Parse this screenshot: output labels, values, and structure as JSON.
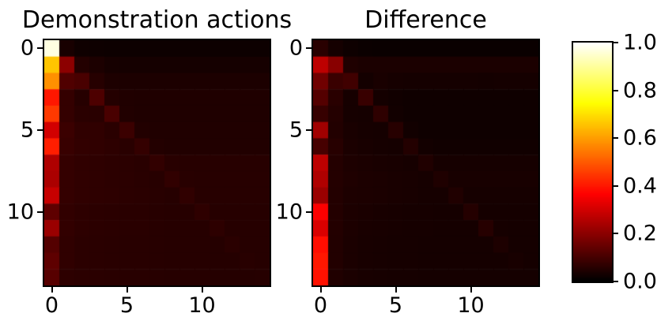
{
  "figure": {
    "background": "#ffffff",
    "axis_color": "#000000",
    "colormap": "hot",
    "vmin": 0.0,
    "vmax": 1.0
  },
  "chart_data": [
    {
      "type": "heatmap",
      "title": "Demonstration actions",
      "xlabel": "",
      "ylabel": "",
      "n_rows": 15,
      "n_cols": 15,
      "colormap": "hot",
      "vmin": 0.0,
      "vmax": 1.0,
      "x_ticks": [
        0,
        5,
        10
      ],
      "x_tick_labels": [
        "0",
        "5",
        "10"
      ],
      "y_ticks": [
        0,
        5,
        10
      ],
      "y_tick_labels": [
        "0",
        "5",
        "10"
      ],
      "values": [
        [
          0.97,
          0.035,
          0.022,
          0.02,
          0.018,
          0.018,
          0.018,
          0.018,
          0.018,
          0.018,
          0.018,
          0.018,
          0.018,
          0.018,
          0.018
        ],
        [
          0.66,
          0.2,
          0.05,
          0.04,
          0.032,
          0.03,
          0.03,
          0.03,
          0.03,
          0.03,
          0.03,
          0.03,
          0.03,
          0.032,
          0.032
        ],
        [
          0.58,
          0.115,
          0.105,
          0.055,
          0.042,
          0.04,
          0.04,
          0.04,
          0.04,
          0.04,
          0.04,
          0.04,
          0.04,
          0.04,
          0.04
        ],
        [
          0.4,
          0.075,
          0.055,
          0.11,
          0.052,
          0.046,
          0.044,
          0.044,
          0.044,
          0.044,
          0.044,
          0.044,
          0.044,
          0.044,
          0.044
        ],
        [
          0.45,
          0.075,
          0.06,
          0.058,
          0.105,
          0.047,
          0.045,
          0.045,
          0.045,
          0.045,
          0.045,
          0.045,
          0.045,
          0.045,
          0.045
        ],
        [
          0.3,
          0.084,
          0.068,
          0.068,
          0.06,
          0.085,
          0.048,
          0.046,
          0.046,
          0.046,
          0.046,
          0.046,
          0.046,
          0.046,
          0.046
        ],
        [
          0.41,
          0.08,
          0.072,
          0.068,
          0.064,
          0.058,
          0.075,
          0.05,
          0.047,
          0.047,
          0.047,
          0.047,
          0.047,
          0.047,
          0.047
        ],
        [
          0.25,
          0.075,
          0.068,
          0.066,
          0.063,
          0.061,
          0.058,
          0.072,
          0.057,
          0.056,
          0.056,
          0.056,
          0.056,
          0.056,
          0.056
        ],
        [
          0.245,
          0.075,
          0.068,
          0.066,
          0.063,
          0.061,
          0.059,
          0.056,
          0.07,
          0.057,
          0.056,
          0.056,
          0.056,
          0.056,
          0.056
        ],
        [
          0.285,
          0.075,
          0.068,
          0.066,
          0.064,
          0.062,
          0.06,
          0.057,
          0.054,
          0.068,
          0.056,
          0.056,
          0.056,
          0.056,
          0.056
        ],
        [
          0.135,
          0.07,
          0.064,
          0.062,
          0.06,
          0.059,
          0.058,
          0.056,
          0.055,
          0.054,
          0.066,
          0.054,
          0.054,
          0.054,
          0.054
        ],
        [
          0.22,
          0.072,
          0.064,
          0.062,
          0.06,
          0.059,
          0.058,
          0.056,
          0.055,
          0.054,
          0.054,
          0.065,
          0.055,
          0.054,
          0.054
        ],
        [
          0.12,
          0.068,
          0.062,
          0.06,
          0.058,
          0.057,
          0.057,
          0.056,
          0.055,
          0.054,
          0.054,
          0.053,
          0.06,
          0.054,
          0.054
        ],
        [
          0.135,
          0.068,
          0.062,
          0.06,
          0.058,
          0.057,
          0.057,
          0.056,
          0.055,
          0.054,
          0.054,
          0.053,
          0.053,
          0.057,
          0.054
        ],
        [
          0.125,
          0.065,
          0.062,
          0.06,
          0.058,
          0.057,
          0.057,
          0.056,
          0.055,
          0.054,
          0.054,
          0.053,
          0.053,
          0.053,
          0.054
        ]
      ]
    },
    {
      "type": "heatmap",
      "title": "Difference",
      "xlabel": "",
      "ylabel": "",
      "n_rows": 15,
      "n_cols": 15,
      "colormap": "hot",
      "vmin": 0.0,
      "vmax": 1.0,
      "x_ticks": [
        0,
        5,
        10
      ],
      "x_tick_labels": [
        "0",
        "5",
        "10"
      ],
      "y_ticks": [
        0,
        5,
        10
      ],
      "y_tick_labels": [
        "0",
        "5",
        "10"
      ],
      "values": [
        [
          0.058,
          0.03,
          0.02,
          0.016,
          0.015,
          0.015,
          0.015,
          0.015,
          0.015,
          0.015,
          0.015,
          0.015,
          0.015,
          0.015,
          0.015
        ],
        [
          0.27,
          0.195,
          0.045,
          0.038,
          0.038,
          0.038,
          0.038,
          0.038,
          0.038,
          0.038,
          0.038,
          0.038,
          0.038,
          0.038,
          0.038
        ],
        [
          0.16,
          0.082,
          0.092,
          0.028,
          0.036,
          0.032,
          0.03,
          0.03,
          0.03,
          0.03,
          0.03,
          0.028,
          0.03,
          0.03,
          0.03
        ],
        [
          0.12,
          0.058,
          0.032,
          0.08,
          0.028,
          0.024,
          0.022,
          0.022,
          0.022,
          0.022,
          0.022,
          0.022,
          0.022,
          0.022,
          0.022
        ],
        [
          0.078,
          0.052,
          0.032,
          0.03,
          0.066,
          0.026,
          0.022,
          0.022,
          0.022,
          0.022,
          0.022,
          0.022,
          0.022,
          0.022,
          0.022
        ],
        [
          0.23,
          0.048,
          0.036,
          0.032,
          0.03,
          0.056,
          0.026,
          0.022,
          0.022,
          0.022,
          0.022,
          0.022,
          0.022,
          0.022,
          0.022
        ],
        [
          0.1,
          0.056,
          0.038,
          0.034,
          0.032,
          0.03,
          0.05,
          0.027,
          0.024,
          0.024,
          0.024,
          0.024,
          0.024,
          0.024,
          0.024
        ],
        [
          0.27,
          0.052,
          0.042,
          0.038,
          0.036,
          0.034,
          0.032,
          0.046,
          0.032,
          0.032,
          0.032,
          0.032,
          0.032,
          0.032,
          0.032
        ],
        [
          0.25,
          0.052,
          0.044,
          0.04,
          0.038,
          0.036,
          0.034,
          0.032,
          0.044,
          0.034,
          0.034,
          0.034,
          0.034,
          0.034,
          0.034
        ],
        [
          0.22,
          0.05,
          0.042,
          0.04,
          0.038,
          0.036,
          0.034,
          0.032,
          0.031,
          0.046,
          0.032,
          0.032,
          0.032,
          0.032,
          0.032
        ],
        [
          0.36,
          0.05,
          0.04,
          0.037,
          0.035,
          0.033,
          0.032,
          0.031,
          0.03,
          0.03,
          0.052,
          0.03,
          0.03,
          0.03,
          0.03
        ],
        [
          0.31,
          0.05,
          0.04,
          0.036,
          0.034,
          0.033,
          0.032,
          0.031,
          0.03,
          0.03,
          0.03,
          0.054,
          0.032,
          0.03,
          0.03
        ],
        [
          0.385,
          0.048,
          0.038,
          0.035,
          0.033,
          0.032,
          0.031,
          0.03,
          0.03,
          0.03,
          0.03,
          0.03,
          0.042,
          0.03,
          0.03
        ],
        [
          0.4,
          0.048,
          0.038,
          0.035,
          0.033,
          0.032,
          0.031,
          0.03,
          0.03,
          0.03,
          0.03,
          0.03,
          0.03,
          0.035,
          0.03
        ],
        [
          0.39,
          0.046,
          0.038,
          0.035,
          0.033,
          0.032,
          0.031,
          0.03,
          0.03,
          0.03,
          0.03,
          0.03,
          0.03,
          0.03,
          0.03
        ]
      ]
    }
  ],
  "colorbar": {
    "colormap": "hot",
    "orientation": "vertical",
    "tick_values": [
      1.0,
      0.8,
      0.6,
      0.4,
      0.2,
      0.0
    ],
    "tick_labels": [
      "1.0",
      "0.8",
      "0.6",
      "0.4",
      "0.2",
      "0.0"
    ]
  }
}
